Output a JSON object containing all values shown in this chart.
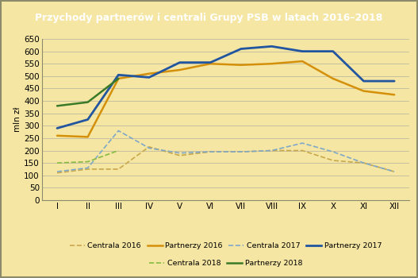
{
  "title": "Przychody partnerów i centrali Grupy PSB w latach 2016–2018",
  "ylabel": "mln zł",
  "months": [
    "I",
    "II",
    "III",
    "IV",
    "V",
    "VI",
    "VII",
    "VIII",
    "IX",
    "X",
    "XI",
    "XII"
  ],
  "centrala_2016": [
    110,
    125,
    125,
    215,
    180,
    195,
    195,
    200,
    200,
    160,
    150,
    115
  ],
  "partnerzy_2016": [
    260,
    255,
    490,
    510,
    525,
    550,
    545,
    550,
    560,
    490,
    440,
    425
  ],
  "centrala_2017": [
    115,
    130,
    280,
    210,
    190,
    195,
    195,
    200,
    230,
    195,
    150,
    115
  ],
  "partnerzy_2017": [
    290,
    325,
    505,
    495,
    555,
    555,
    610,
    620,
    600,
    600,
    480,
    480
  ],
  "centrala_2018": [
    150,
    155,
    200,
    null,
    null,
    null,
    null,
    null,
    null,
    null,
    null,
    null
  ],
  "partnerzy_2018": [
    380,
    395,
    490,
    null,
    null,
    null,
    null,
    null,
    null,
    null,
    null,
    null
  ],
  "color_centrala_2016": "#c8a84b",
  "color_partnerzy_2016": "#d4900a",
  "color_centrala_2017": "#7fa8c8",
  "color_partnerzy_2017": "#2255a0",
  "color_centrala_2018": "#88bb44",
  "color_partnerzy_2018": "#3a7a28",
  "ylim": [
    0,
    650
  ],
  "yticks": [
    0,
    50,
    100,
    150,
    200,
    250,
    300,
    350,
    400,
    450,
    500,
    550,
    600,
    650
  ],
  "bg_color": "#f5e6a3",
  "title_bg": "#1a4f72",
  "title_color": "#ffffff",
  "grid_color": "#999999",
  "border_color": "#8b8b6b"
}
